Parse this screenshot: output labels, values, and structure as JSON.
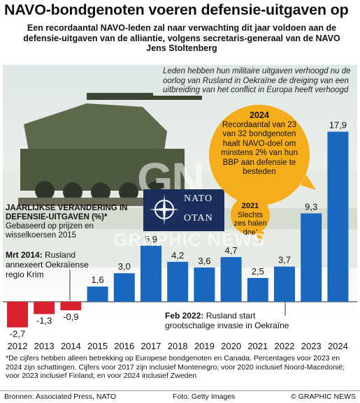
{
  "header": {
    "title": "NAVO-bondgenoten voeren defensie-uitgaven op",
    "subtitle": "Een recordaantal NAVO-leden zal naar verwachting dit jaar voldoen aan de defensie-uitgaven van de alliantie, volgens secretaris-generaal van de NAVO Jens Stoltenberg"
  },
  "caption": "Leden hebben hun militaire uitgaven verhoogd nu de oorlog van Rusland in Oekraïne de dreiging van een uitbreiding van het conflict in Europa heeft verhoogd",
  "callouts": {
    "y2024_year": "2024",
    "y2024_text": "Recordaantal van 23 van 32 bondgenoten haalt NAVO-doel om minstens 2% van hun BBP aan defensie te besteden",
    "y2021_year": "2021",
    "y2021_text": "Slechts zes halen doel"
  },
  "sign": {
    "line1": "NATO",
    "line2": "OTAN"
  },
  "watermark": {
    "logo": "GN",
    "text": "GRAPHIC NEWS"
  },
  "legend": {
    "title": "JAARLIJKSE VERANDERING IN DEFENSIE-UITGAVEN (%)*",
    "subtitle": "Gebaseerd op prijzen en wisselkoersen 2015"
  },
  "annotations": {
    "mrt2014_date": "Mrt 2014:",
    "mrt2014_text": " Rusland annexeert Oekraïense regio Krim",
    "feb2022_date": "Feb 2022:",
    "feb2022_text": " Rusland start grootschalige invasie in Oekraïne"
  },
  "chart_data": {
    "type": "bar",
    "title": "JAARLIJKSE VERANDERING IN DEFENSIE-UITGAVEN (%)*",
    "categories": [
      "2012",
      "2013",
      "2014",
      "2015",
      "2016",
      "2017",
      "2018",
      "2019",
      "2020",
      "2021",
      "2022",
      "2023",
      "2024"
    ],
    "values": [
      -2.7,
      -1.3,
      -0.9,
      1.6,
      3.0,
      5.9,
      4.2,
      3.6,
      4.7,
      2.5,
      3.7,
      9.3,
      17.9
    ],
    "value_labels": [
      "-2,7",
      "-1,3",
      "-0,9",
      "1,6",
      "3,0",
      "5,9",
      "4,2",
      "3,6",
      "4,7",
      "2,5",
      "3,7",
      "9,3",
      "17,9"
    ],
    "colors": {
      "positive": "#1a67c0",
      "negative": "#d8202f"
    }
  },
  "footnote": "*De cijfers hebben alleen betrekking op Europese bondgenoten en Canada. Percentages voor 2023 en 2024 zijn schattingen. Cijfers voor 2017 zijn inclusief Montenegro; voor 2020 inclusief Noord-Macedonië; voor 2023 inclusief Finland; en voor 2024 inclusief Zweden",
  "footer": {
    "sources": "Bronnen: Associated Press, NATO",
    "photo": "Foto: Getty Images",
    "credit": "© GRAPHIC NEWS"
  }
}
